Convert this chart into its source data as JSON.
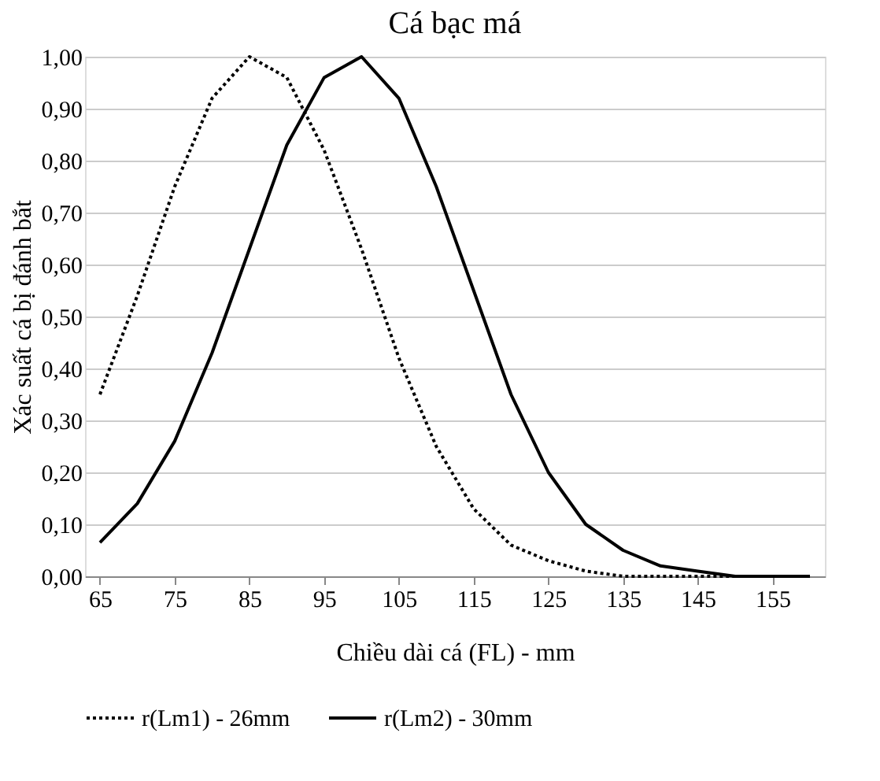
{
  "chart_data": {
    "type": "line",
    "title": "Cá bạc má",
    "xlabel": "Chiều dài cá (FL) - mm",
    "ylabel": "Xác suất cá bị đánh bắt",
    "x": [
      65,
      70,
      75,
      80,
      85,
      90,
      95,
      100,
      105,
      110,
      115,
      120,
      125,
      130,
      135,
      140,
      145,
      150,
      155,
      160
    ],
    "series": [
      {
        "name": "r(Lm1) - 26mm",
        "color": "#000000",
        "line_style": "dotted",
        "values": [
          0.35,
          0.54,
          0.75,
          0.92,
          1.0,
          0.96,
          0.82,
          0.63,
          0.42,
          0.25,
          0.13,
          0.06,
          0.03,
          0.01,
          0.0,
          0.0,
          0.0,
          0.0,
          0.0,
          0.0
        ]
      },
      {
        "name": "r(Lm2) - 30mm",
        "color": "#000000",
        "line_style": "solid",
        "values": [
          0.065,
          0.14,
          0.26,
          0.43,
          0.63,
          0.83,
          0.96,
          1.0,
          0.92,
          0.75,
          0.55,
          0.35,
          0.2,
          0.1,
          0.05,
          0.02,
          0.01,
          0.0,
          0.0,
          0.0
        ]
      }
    ],
    "xlim": [
      63,
      162
    ],
    "xticks": [
      65,
      75,
      85,
      95,
      105,
      115,
      125,
      135,
      145,
      155
    ],
    "ylim": [
      0,
      1
    ],
    "yticks": [
      {
        "value": 0,
        "label": "0,00"
      },
      {
        "value": 0.1,
        "label": "0,10"
      },
      {
        "value": 0.2,
        "label": "0,20"
      },
      {
        "value": 0.3,
        "label": "0,30"
      },
      {
        "value": 0.4,
        "label": "0,40"
      },
      {
        "value": 0.5,
        "label": "0,50"
      },
      {
        "value": 0.6,
        "label": "0,60"
      },
      {
        "value": 0.7,
        "label": "0,70"
      },
      {
        "value": 0.8,
        "label": "0,80"
      },
      {
        "value": 0.9,
        "label": "0,90"
      },
      {
        "value": 1,
        "label": "1,00"
      }
    ],
    "grid": "y",
    "legend": "bottom"
  }
}
